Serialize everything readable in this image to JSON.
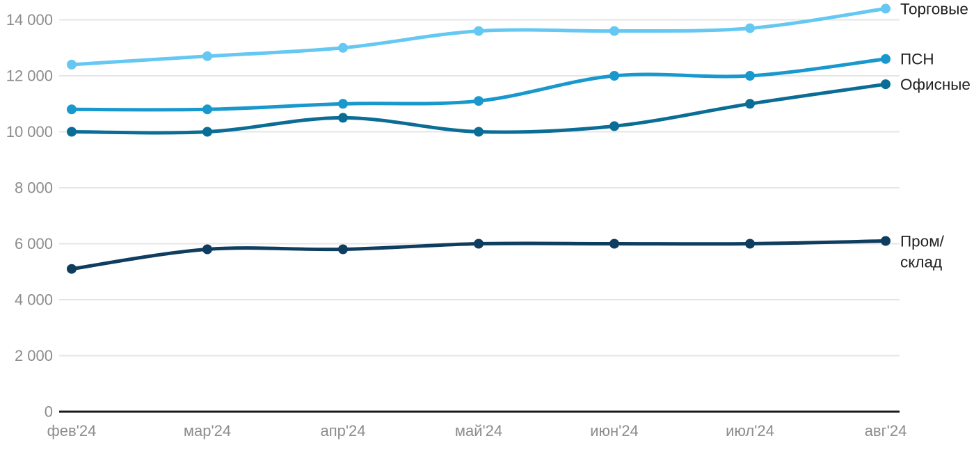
{
  "chart_data": {
    "type": "line",
    "title": "",
    "xlabel": "",
    "ylabel": "",
    "x_categories": [
      "фев'24",
      "мар'24",
      "апр'24",
      "май'24",
      "июн'24",
      "июл'24",
      "авг'24"
    ],
    "y_ticks": {
      "values": [
        0,
        2000,
        4000,
        6000,
        8000,
        10000,
        12000,
        14000
      ],
      "labels": [
        "0",
        "2 000",
        "4 000",
        "6 000",
        "8 000",
        "10 000",
        "12 000",
        "14 000"
      ]
    },
    "ylim": [
      0,
      14500
    ],
    "grid": "horizontal",
    "legend_position": "right-of-line-end",
    "series": [
      {
        "id": "torgovye",
        "name": "Торговые",
        "legend_lines": [
          "Торговые"
        ],
        "color": "#64C8F2",
        "values": [
          12400,
          12700,
          13000,
          13600,
          13600,
          13700,
          14400
        ]
      },
      {
        "id": "psn",
        "name": "ПСН",
        "legend_lines": [
          "ПСН"
        ],
        "color": "#1898CC",
        "values": [
          10800,
          10800,
          11000,
          11100,
          12000,
          12000,
          12600
        ]
      },
      {
        "id": "ofisnye",
        "name": "Офисные",
        "legend_lines": [
          "Офисные"
        ],
        "color": "#0B6D96",
        "values": [
          10000,
          10000,
          10500,
          10000,
          10200,
          11000,
          11700
        ]
      },
      {
        "id": "prom-sklad",
        "name": "Пром/склад",
        "legend_lines": [
          "Пром/",
          "склад"
        ],
        "color": "#0E3D5F",
        "values": [
          5100,
          5800,
          5800,
          6000,
          6000,
          6000,
          6100
        ]
      }
    ],
    "colors": {
      "background": "#FFFFFF",
      "grid": "#E5E5E5",
      "axis": "#1A1A1A",
      "tick_label": "#8C8C8C",
      "legend_text": "#1F1F1F"
    }
  }
}
